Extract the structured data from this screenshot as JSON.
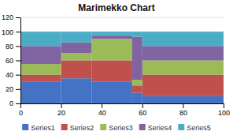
{
  "chart_data": {
    "type": "bar",
    "title": "Marimekko Chart",
    "stacked": true,
    "bins": [
      0,
      20,
      35,
      55,
      60,
      100
    ],
    "series": [
      {
        "name": "Series1",
        "color": "#4472C4",
        "values": [
          30,
          35,
          30,
          15,
          10
        ]
      },
      {
        "name": "Series2",
        "color": "#C0504D",
        "values": [
          10,
          25,
          30,
          10,
          30
        ]
      },
      {
        "name": "Series3",
        "color": "#9BBB59",
        "values": [
          15,
          10,
          30,
          8,
          20
        ]
      },
      {
        "name": "Series4",
        "color": "#8064A2",
        "values": [
          25,
          15,
          5,
          60,
          20
        ]
      },
      {
        "name": "Series5",
        "color": "#4BACC6",
        "values": [
          20,
          15,
          5,
          7,
          20
        ]
      }
    ],
    "xlim": [
      0,
      100
    ],
    "xticks": [
      0,
      20,
      40,
      60,
      80,
      100
    ],
    "ylim": [
      0,
      120
    ],
    "yticks": [
      0,
      20,
      40,
      60,
      80,
      100,
      120
    ],
    "grid": true,
    "legend": "bottom"
  }
}
